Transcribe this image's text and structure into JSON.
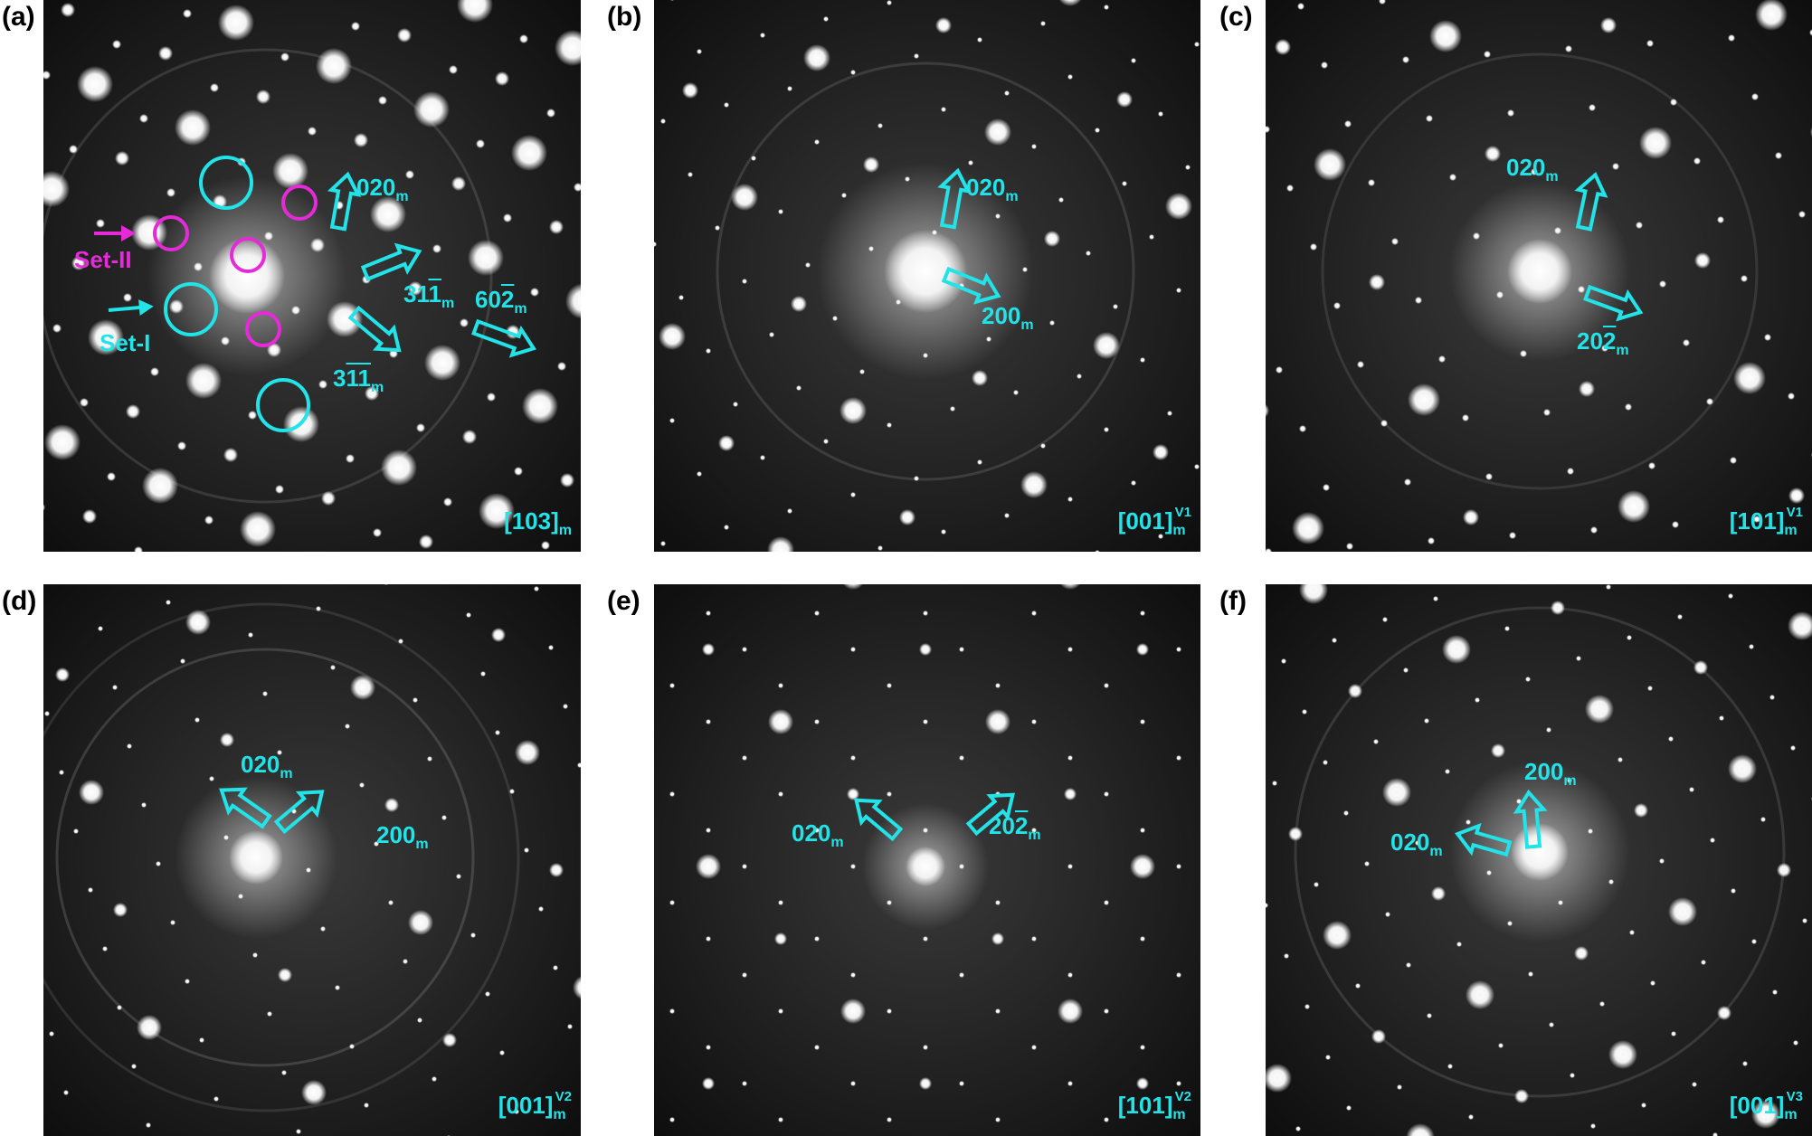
{
  "panels": [
    {
      "letter": "(a)",
      "zone_axis": "[103]",
      "zone_sub": "m",
      "zone_sup": "",
      "labels": [
        {
          "text": "020",
          "sub": "m"
        },
        {
          "text": "31̅​1̅",
          "sub": "m"
        },
        {
          "text": "60̅2",
          "sub": "m"
        },
        {
          "text": "31̅1̅",
          "sub": "m"
        }
      ],
      "set_labels": {
        "set1": "Set-I",
        "set2": "Set-II"
      }
    },
    {
      "letter": "(b)",
      "zone_axis": "[001]",
      "zone_sub": "m",
      "zone_sup": "V1",
      "labels": [
        {
          "text": "020",
          "sub": "m"
        },
        {
          "text": "200",
          "sub": "m"
        }
      ]
    },
    {
      "letter": "(c)",
      "zone_axis": "[101]",
      "zone_sub": "m",
      "zone_sup": "V1",
      "labels": [
        {
          "text": "020",
          "sub": "m"
        },
        {
          "text": "20̅2",
          "sub": "m"
        }
      ]
    },
    {
      "letter": "(d)",
      "zone_axis": "[001]",
      "zone_sub": "m",
      "zone_sup": "V2",
      "labels": [
        {
          "text": "020",
          "sub": "m"
        },
        {
          "text": "200",
          "sub": "m"
        }
      ]
    },
    {
      "letter": "(e)",
      "zone_axis": "[101]",
      "zone_sub": "m",
      "zone_sup": "V2",
      "labels": [
        {
          "text": "020",
          "sub": "m"
        },
        {
          "text": "20̅2",
          "sub": "m"
        }
      ]
    },
    {
      "letter": "(f)",
      "zone_axis": "[001]",
      "zone_sub": "m",
      "zone_sup": "V3",
      "labels": [
        {
          "text": "200",
          "sub": "m"
        },
        {
          "text": "020",
          "sub": "m"
        }
      ]
    }
  ],
  "colors": {
    "annotation": "#22e3e8",
    "set2": "#e52ad8",
    "background": "#111111"
  }
}
